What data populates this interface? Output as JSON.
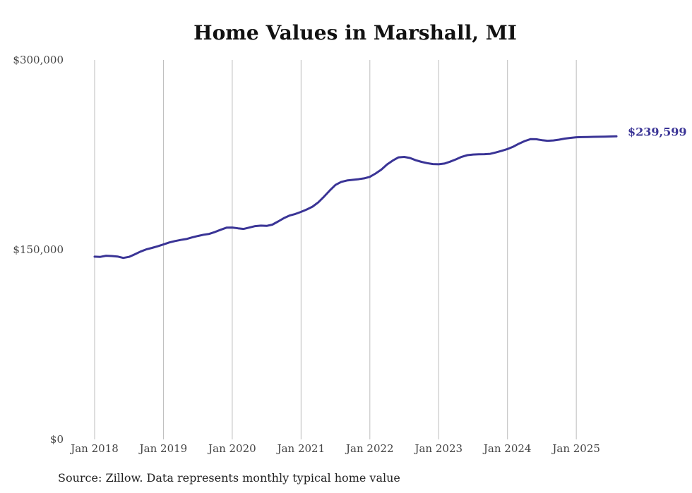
{
  "chart_data": {
    "type": "line",
    "title": "Home Values in Marshall, MI",
    "xlabel": "",
    "ylabel": "",
    "ylim": [
      0,
      300000
    ],
    "y_ticks": [
      {
        "value": 0,
        "label": "$0"
      },
      {
        "value": 150000,
        "label": "$150,000"
      },
      {
        "value": 300000,
        "label": "$300,000"
      }
    ],
    "x_ticks": [
      {
        "value": "2018-01",
        "label": "Jan 2018"
      },
      {
        "value": "2019-01",
        "label": "Jan 2019"
      },
      {
        "value": "2020-01",
        "label": "Jan 2020"
      },
      {
        "value": "2021-01",
        "label": "Jan 2021"
      },
      {
        "value": "2022-01",
        "label": "Jan 2022"
      },
      {
        "value": "2023-01",
        "label": "Jan 2023"
      },
      {
        "value": "2024-01",
        "label": "Jan 2024"
      },
      {
        "value": "2025-01",
        "label": "Jan 2025"
      }
    ],
    "grid": {
      "vertical": true,
      "horizontal": false
    },
    "line_color": "#3a3496",
    "end_label": "$239,599",
    "series": [
      {
        "x": [
          "2018-01",
          "2018-02",
          "2018-03",
          "2018-04",
          "2018-05",
          "2018-06",
          "2018-07",
          "2018-08",
          "2018-09",
          "2018-10",
          "2018-11",
          "2018-12",
          "2019-01",
          "2019-02",
          "2019-03",
          "2019-04",
          "2019-05",
          "2019-06",
          "2019-07",
          "2019-08",
          "2019-09",
          "2019-10",
          "2019-11",
          "2019-12",
          "2020-01",
          "2020-02",
          "2020-03",
          "2020-04",
          "2020-05",
          "2020-06",
          "2020-07",
          "2020-08",
          "2020-09",
          "2020-10",
          "2020-11",
          "2020-12",
          "2021-01",
          "2021-02",
          "2021-03",
          "2021-04",
          "2021-05",
          "2021-06",
          "2021-07",
          "2021-08",
          "2021-09",
          "2021-10",
          "2021-11",
          "2021-12",
          "2022-01",
          "2022-02",
          "2022-03",
          "2022-04",
          "2022-05",
          "2022-06",
          "2022-07",
          "2022-08",
          "2022-09",
          "2022-10",
          "2022-11",
          "2022-12",
          "2023-01",
          "2023-02",
          "2023-03",
          "2023-04",
          "2023-05",
          "2023-06",
          "2023-07",
          "2023-08",
          "2023-09",
          "2023-10",
          "2023-11",
          "2023-12",
          "2024-01",
          "2024-02",
          "2024-03",
          "2024-04",
          "2024-05",
          "2024-06",
          "2024-07",
          "2024-08",
          "2024-09",
          "2024-10",
          "2024-11",
          "2024-12",
          "2025-01",
          "2025-02",
          "2025-03",
          "2025-04",
          "2025-05",
          "2025-06",
          "2025-07",
          "2025-08"
        ],
        "values": [
          144500,
          144300,
          145200,
          145000,
          144600,
          143500,
          144300,
          146300,
          148500,
          150200,
          151400,
          152700,
          154100,
          155700,
          156800,
          157700,
          158400,
          159700,
          160800,
          161800,
          162500,
          164000,
          165800,
          167400,
          167500,
          166900,
          166400,
          167500,
          168600,
          169000,
          168800,
          169800,
          172300,
          174900,
          177000,
          178200,
          179900,
          181800,
          184000,
          187400,
          191900,
          196800,
          201200,
          203600,
          204700,
          205200,
          205700,
          206400,
          207600,
          210200,
          213300,
          217400,
          220500,
          223000,
          223300,
          222500,
          220700,
          219400,
          218400,
          217700,
          217500,
          218100,
          219600,
          221400,
          223400,
          224700,
          225200,
          225400,
          225500,
          225800,
          226900,
          228200,
          229600,
          231400,
          233800,
          235900,
          237400,
          237300,
          236600,
          236100,
          236400,
          237000,
          237800,
          238400,
          238900,
          239000,
          239100,
          239200,
          239300,
          239400,
          239500,
          239599
        ]
      }
    ]
  },
  "source_note": "Source: Zillow. Data represents monthly typical home value"
}
